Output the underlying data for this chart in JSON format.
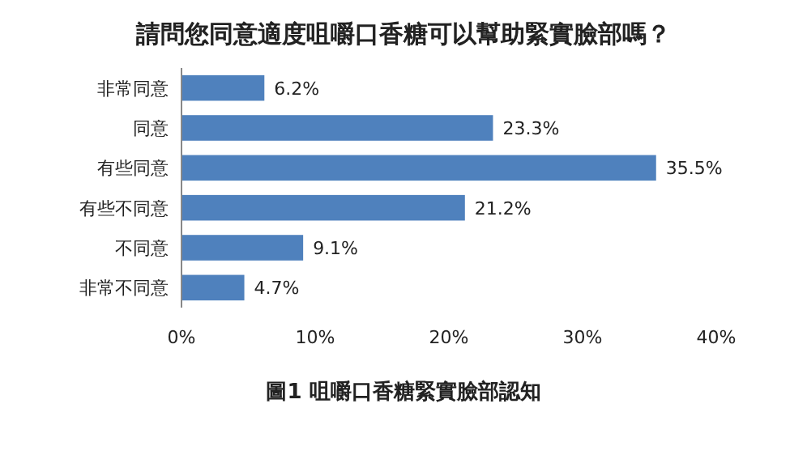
{
  "chart_data": {
    "type": "bar",
    "orientation": "horizontal",
    "title": "請問您同意適度咀嚼口香糖可以幫助緊實臉部嗎？",
    "categories": [
      "非常同意",
      "同意",
      "有些同意",
      "有些不同意",
      "不同意",
      "非常不同意"
    ],
    "values": [
      6.2,
      23.3,
      35.5,
      21.2,
      9.1,
      4.7
    ],
    "value_labels": [
      "6.2%",
      "23.3%",
      "35.5%",
      "21.2%",
      "9.1%",
      "4.7%"
    ],
    "color": "#4f81bd",
    "xlim": [
      0,
      40
    ],
    "xticks": [
      {
        "value": 0,
        "label": "0%"
      },
      {
        "value": 10,
        "label": "10%"
      },
      {
        "value": 20,
        "label": "20%"
      },
      {
        "value": 30,
        "label": "30%"
      },
      {
        "value": 40,
        "label": "40%"
      }
    ],
    "grid": false,
    "annotations": [
      "圖1 咀嚼口香糖緊實臉部認知"
    ]
  }
}
